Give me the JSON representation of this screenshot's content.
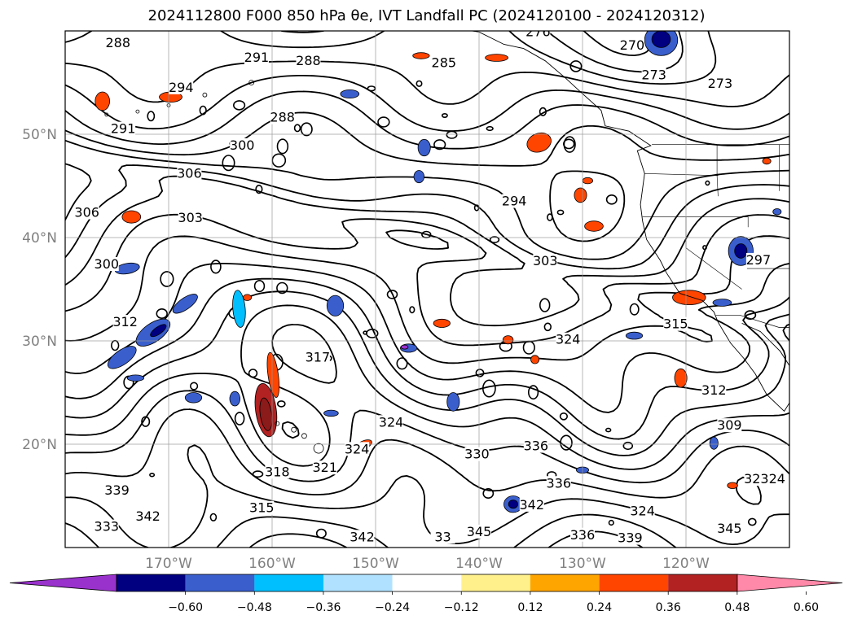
{
  "figure": {
    "title": "2024112800 F000 850 hPa θe, IVT Landfall PC (2024120100 - 2024120312)"
  },
  "map": {
    "extent_lon": [
      -180,
      -110
    ],
    "extent_lat": [
      10,
      60
    ],
    "gridlines": true,
    "lat_ticks": [
      {
        "value": 20,
        "label": "20°N"
      },
      {
        "value": 30,
        "label": "30°N"
      },
      {
        "value": 40,
        "label": "40°N"
      },
      {
        "value": 50,
        "label": "50°N"
      }
    ],
    "lon_ticks": [
      {
        "value": -170,
        "label": "170°W"
      },
      {
        "value": -160,
        "label": "160°W"
      },
      {
        "value": -150,
        "label": "150°W"
      },
      {
        "value": -140,
        "label": "140°W"
      },
      {
        "value": -130,
        "label": "130°W"
      },
      {
        "value": -120,
        "label": "120°W"
      }
    ],
    "contour_labels": [
      {
        "text": "288",
        "lon": -174.9,
        "lat": 58.8
      },
      {
        "text": "291",
        "lon": -161.5,
        "lat": 57.4
      },
      {
        "text": "288",
        "lon": -156.5,
        "lat": 57.1
      },
      {
        "text": "276",
        "lon": -134.3,
        "lat": 59.9
      },
      {
        "text": "270",
        "lon": -125.2,
        "lat": 58.6
      },
      {
        "text": "273",
        "lon": -123.1,
        "lat": 55.7
      },
      {
        "text": "273",
        "lon": -116.7,
        "lat": 54.9
      },
      {
        "text": "285",
        "lon": -143.4,
        "lat": 56.9
      },
      {
        "text": "294",
        "lon": -168.8,
        "lat": 54.5
      },
      {
        "text": "291",
        "lon": -174.4,
        "lat": 50.5
      },
      {
        "text": "288",
        "lon": -159.0,
        "lat": 51.6
      },
      {
        "text": "300",
        "lon": -162.9,
        "lat": 48.9
      },
      {
        "text": "306",
        "lon": -168.0,
        "lat": 46.2
      },
      {
        "text": "303",
        "lon": -167.9,
        "lat": 41.9
      },
      {
        "text": "306",
        "lon": -177.9,
        "lat": 42.4
      },
      {
        "text": "294",
        "lon": -136.6,
        "lat": 43.5
      },
      {
        "text": "300",
        "lon": -176.0,
        "lat": 37.4
      },
      {
        "text": "303",
        "lon": -133.6,
        "lat": 37.7
      },
      {
        "text": "297",
        "lon": -113.0,
        "lat": 37.8
      },
      {
        "text": "312",
        "lon": -174.2,
        "lat": 31.8
      },
      {
        "text": "324",
        "lon": -131.4,
        "lat": 30.1
      },
      {
        "text": "315",
        "lon": -121.0,
        "lat": 31.6
      },
      {
        "text": "317",
        "lon": -155.6,
        "lat": 28.4
      },
      {
        "text": "312",
        "lon": -117.3,
        "lat": 25.2
      },
      {
        "text": "309",
        "lon": -115.8,
        "lat": 21.8
      },
      {
        "text": "324",
        "lon": -148.5,
        "lat": 22.1
      },
      {
        "text": "324",
        "lon": -151.8,
        "lat": 19.5
      },
      {
        "text": "336",
        "lon": -134.5,
        "lat": 19.8
      },
      {
        "text": "330",
        "lon": -140.2,
        "lat": 19.0
      },
      {
        "text": "318",
        "lon": -159.5,
        "lat": 17.3
      },
      {
        "text": "321",
        "lon": -154.9,
        "lat": 17.7
      },
      {
        "text": "336",
        "lon": -132.3,
        "lat": 16.2
      },
      {
        "text": "327",
        "lon": -113.2,
        "lat": 16.6
      },
      {
        "text": "324",
        "lon": -111.6,
        "lat": 16.6
      },
      {
        "text": "342",
        "lon": -134.9,
        "lat": 14.1
      },
      {
        "text": "324",
        "lon": -124.2,
        "lat": 13.5
      },
      {
        "text": "345",
        "lon": -115.8,
        "lat": 11.8
      },
      {
        "text": "339",
        "lon": -125.4,
        "lat": 10.9
      },
      {
        "text": "336",
        "lon": -130.0,
        "lat": 11.2
      },
      {
        "text": "345",
        "lon": -140.0,
        "lat": 11.5
      },
      {
        "text": "342",
        "lon": -151.3,
        "lat": 11.0
      },
      {
        "text": "315",
        "lon": -161.0,
        "lat": 13.8
      },
      {
        "text": "342",
        "lon": -172.0,
        "lat": 13.0
      },
      {
        "text": "333",
        "lon": -176.0,
        "lat": 12.0
      },
      {
        "text": "339",
        "lon": -175.0,
        "lat": 15.5
      },
      {
        "text": "33",
        "lon": -143.5,
        "lat": 11.0
      }
    ],
    "anomaly_patches": [
      {
        "lon": -160.6,
        "lat": 23.3,
        "rx": 1.0,
        "ry": 2.6,
        "color": "#b22222",
        "rot": -8
      },
      {
        "lon": -160.6,
        "lat": 22.9,
        "rx": 0.55,
        "ry": 1.6,
        "color": "#8b1a1a",
        "rot": -8
      },
      {
        "lon": -159.9,
        "lat": 26.7,
        "rx": 0.5,
        "ry": 2.2,
        "color": "#ff4500",
        "rot": -8
      },
      {
        "lon": -171.5,
        "lat": 30.8,
        "rx": 1.9,
        "ry": 0.9,
        "color": "#3a5fcd",
        "rot": -35
      },
      {
        "lon": -174.5,
        "lat": 28.4,
        "rx": 1.6,
        "ry": 0.7,
        "color": "#3a5fcd",
        "rot": -35
      },
      {
        "lon": -168.4,
        "lat": 33.6,
        "rx": 1.4,
        "ry": 0.55,
        "color": "#3a5fcd",
        "rot": -35
      },
      {
        "lon": -171.0,
        "lat": 31.0,
        "rx": 0.9,
        "ry": 0.35,
        "color": "#000080",
        "rot": -35
      },
      {
        "lon": -163.2,
        "lat": 33.1,
        "rx": 0.6,
        "ry": 1.8,
        "color": "#00bfff",
        "rot": -5
      },
      {
        "lon": -174.0,
        "lat": 37.0,
        "rx": 1.2,
        "ry": 0.5,
        "color": "#3a5fcd",
        "rot": -10
      },
      {
        "lon": -176.4,
        "lat": 53.2,
        "rx": 0.7,
        "ry": 0.9,
        "color": "#ff4500",
        "rot": 0
      },
      {
        "lon": -169.8,
        "lat": 53.6,
        "rx": 1.1,
        "ry": 0.5,
        "color": "#ff4500",
        "rot": 0
      },
      {
        "lon": -173.6,
        "lat": 42.0,
        "rx": 0.9,
        "ry": 0.6,
        "color": "#ff4500",
        "rot": 0
      },
      {
        "lon": -163.3,
        "lat": 49.1,
        "rx": 0.8,
        "ry": 0.4,
        "color": "#ff4500",
        "rot": 0
      },
      {
        "lon": -152.5,
        "lat": 53.9,
        "rx": 0.9,
        "ry": 0.4,
        "color": "#3a5fcd",
        "rot": 0
      },
      {
        "lon": -138.3,
        "lat": 57.4,
        "rx": 1.1,
        "ry": 0.35,
        "color": "#ff4500",
        "rot": 0
      },
      {
        "lon": -145.6,
        "lat": 57.6,
        "rx": 0.8,
        "ry": 0.3,
        "color": "#ff4500",
        "rot": 0
      },
      {
        "lon": -134.2,
        "lat": 49.2,
        "rx": 1.2,
        "ry": 0.9,
        "color": "#ff4500",
        "rot": -20
      },
      {
        "lon": -130.2,
        "lat": 44.1,
        "rx": 0.6,
        "ry": 0.7,
        "color": "#ff4500",
        "rot": 0
      },
      {
        "lon": -128.9,
        "lat": 41.1,
        "rx": 0.9,
        "ry": 0.5,
        "color": "#ff4500",
        "rot": 0
      },
      {
        "lon": -119.7,
        "lat": 34.2,
        "rx": 1.6,
        "ry": 0.7,
        "color": "#ff4500",
        "rot": 0
      },
      {
        "lon": -120.5,
        "lat": 26.4,
        "rx": 0.6,
        "ry": 0.9,
        "color": "#ff4500",
        "rot": 0
      },
      {
        "lon": -137.2,
        "lat": 30.1,
        "rx": 0.5,
        "ry": 0.4,
        "color": "#ff4500",
        "rot": 0
      },
      {
        "lon": -151.2,
        "lat": 19.9,
        "rx": 0.9,
        "ry": 0.4,
        "color": "#ff4500",
        "rot": -25
      },
      {
        "lon": -143.6,
        "lat": 31.7,
        "rx": 0.8,
        "ry": 0.4,
        "color": "#ff4500",
        "rot": 0
      },
      {
        "lon": -134.6,
        "lat": 28.2,
        "rx": 0.4,
        "ry": 0.4,
        "color": "#ff4500",
        "rot": 0
      },
      {
        "lon": -122.4,
        "lat": 59.1,
        "rx": 1.6,
        "ry": 1.5,
        "color": "#3a5fcd",
        "rot": 0
      },
      {
        "lon": -122.4,
        "lat": 59.2,
        "rx": 0.9,
        "ry": 0.8,
        "color": "#000080",
        "rot": 0
      },
      {
        "lon": -114.7,
        "lat": 38.7,
        "rx": 1.2,
        "ry": 1.4,
        "color": "#3a5fcd",
        "rot": 0
      },
      {
        "lon": -114.7,
        "lat": 38.7,
        "rx": 0.6,
        "ry": 0.7,
        "color": "#000080",
        "rot": 0
      },
      {
        "lon": -153.9,
        "lat": 33.4,
        "rx": 0.8,
        "ry": 1.0,
        "color": "#3a5fcd",
        "rot": 0
      },
      {
        "lon": -145.3,
        "lat": 48.7,
        "rx": 0.6,
        "ry": 0.8,
        "color": "#3a5fcd",
        "rot": 0
      },
      {
        "lon": -145.8,
        "lat": 45.9,
        "rx": 0.5,
        "ry": 0.6,
        "color": "#3a5fcd",
        "rot": 0
      },
      {
        "lon": -136.7,
        "lat": 14.2,
        "rx": 0.9,
        "ry": 0.8,
        "color": "#3a5fcd",
        "rot": 0
      },
      {
        "lon": -136.7,
        "lat": 14.2,
        "rx": 0.45,
        "ry": 0.4,
        "color": "#000080",
        "rot": 0
      },
      {
        "lon": -146.8,
        "lat": 29.3,
        "rx": 0.8,
        "ry": 0.4,
        "color": "#3a5fcd",
        "rot": 0
      },
      {
        "lon": -147.2,
        "lat": 29.4,
        "rx": 0.35,
        "ry": 0.2,
        "color": "#9932cc",
        "rot": 0
      },
      {
        "lon": -167.6,
        "lat": 24.5,
        "rx": 0.8,
        "ry": 0.5,
        "color": "#3a5fcd",
        "rot": 0
      },
      {
        "lon": -163.6,
        "lat": 24.4,
        "rx": 0.5,
        "ry": 0.7,
        "color": "#3a5fcd",
        "rot": 0
      },
      {
        "lon": -142.5,
        "lat": 24.1,
        "rx": 0.6,
        "ry": 0.9,
        "color": "#3a5fcd",
        "rot": 0
      },
      {
        "lon": -154.3,
        "lat": 23.0,
        "rx": 0.7,
        "ry": 0.3,
        "color": "#3a5fcd",
        "rot": 0
      },
      {
        "lon": -173.2,
        "lat": 26.4,
        "rx": 0.8,
        "ry": 0.3,
        "color": "#3a5fcd",
        "rot": 0
      },
      {
        "lon": -125.0,
        "lat": 30.5,
        "rx": 0.8,
        "ry": 0.35,
        "color": "#3a5fcd",
        "rot": 0
      },
      {
        "lon": -116.5,
        "lat": 33.7,
        "rx": 0.9,
        "ry": 0.35,
        "color": "#3a5fcd",
        "rot": 0
      },
      {
        "lon": -130.0,
        "lat": 17.5,
        "rx": 0.6,
        "ry": 0.3,
        "color": "#3a5fcd",
        "rot": 0
      },
      {
        "lon": -117.3,
        "lat": 20.1,
        "rx": 0.4,
        "ry": 0.6,
        "color": "#3a5fcd",
        "rot": 0
      },
      {
        "lon": -162.4,
        "lat": 34.2,
        "rx": 0.4,
        "ry": 0.3,
        "color": "#ff4500",
        "rot": 0
      },
      {
        "lon": -129.5,
        "lat": 45.5,
        "rx": 0.5,
        "ry": 0.3,
        "color": "#ff4500",
        "rot": 0
      },
      {
        "lon": -111.2,
        "lat": 42.5,
        "rx": 0.4,
        "ry": 0.3,
        "color": "#3a5fcd",
        "rot": 0
      },
      {
        "lon": -112.2,
        "lat": 47.4,
        "rx": 0.4,
        "ry": 0.3,
        "color": "#ff4500",
        "rot": 0
      },
      {
        "lon": -115.5,
        "lat": 16.0,
        "rx": 0.5,
        "ry": 0.3,
        "color": "#ff4500",
        "rot": 0
      }
    ],
    "coastline_color": "#000000",
    "contour_color": "#000000"
  },
  "colorbar": {
    "ticks": [
      "−0.60",
      "−0.48",
      "−0.36",
      "−0.24",
      "−0.12",
      "0.12",
      "0.24",
      "0.36",
      "0.48",
      "0.60"
    ],
    "colors": [
      "#9932cc",
      "#000080",
      "#3a5fcd",
      "#00bfff",
      "#b0e2ff",
      "#ffffff",
      "#fff08c",
      "#ffa500",
      "#ff4500",
      "#b22222",
      "#ff89a8"
    ],
    "extend": "both"
  }
}
